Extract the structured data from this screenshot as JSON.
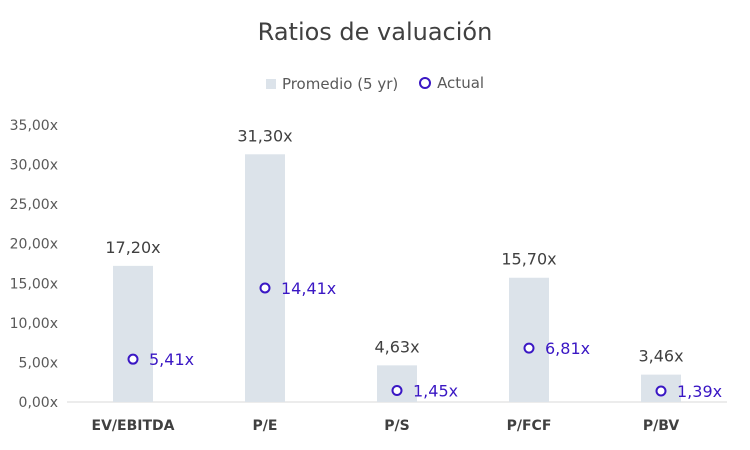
{
  "chart_data": {
    "type": "bar",
    "title": "Ratios de valuación",
    "categories": [
      "EV/EBITDA",
      "P/E",
      "P/S",
      "P/FCF",
      "P/BV"
    ],
    "series": [
      {
        "name": "Promedio (5 yr)",
        "kind": "bar",
        "color": "#dce3ea",
        "values": [
          17.2,
          31.3,
          4.63,
          15.7,
          3.46
        ],
        "labels": [
          "17,20x",
          "31,30x",
          "4,63x",
          "15,70x",
          "3,46x"
        ]
      },
      {
        "name": "Actual",
        "kind": "marker",
        "color": "#3a17c4",
        "values": [
          5.41,
          14.41,
          1.45,
          6.81,
          1.39
        ],
        "labels": [
          "5,41x",
          "14,41x",
          "1,45x",
          "6,81x",
          "1,39x"
        ]
      }
    ],
    "ylim": [
      0,
      35
    ],
    "yticks": [
      0,
      5,
      10,
      15,
      20,
      25,
      30,
      35
    ],
    "ytick_labels": [
      "0,00x",
      "5,00x",
      "10,00x",
      "15,00x",
      "20,00x",
      "25,00x",
      "30,00x",
      "35,00x"
    ],
    "grid": false,
    "legend_position": "top"
  }
}
